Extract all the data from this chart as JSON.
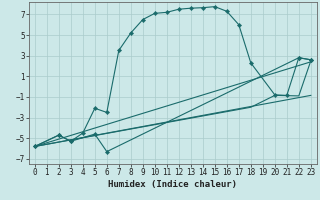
{
  "xlabel": "Humidex (Indice chaleur)",
  "background_color": "#cce8e8",
  "grid_color": "#aacccc",
  "line_color": "#1a6b6b",
  "xlim": [
    -0.5,
    23.5
  ],
  "ylim": [
    -7.5,
    8.2
  ],
  "yticks": [
    -7,
    -5,
    -3,
    -1,
    1,
    3,
    5,
    7
  ],
  "xticks": [
    0,
    1,
    2,
    3,
    4,
    5,
    6,
    7,
    8,
    9,
    10,
    11,
    12,
    13,
    14,
    15,
    16,
    17,
    18,
    19,
    20,
    21,
    22,
    23
  ],
  "line1_x": [
    0,
    2,
    3,
    4,
    5,
    6,
    7,
    8,
    9,
    10,
    11,
    12,
    13,
    14,
    15,
    16,
    17,
    18,
    20,
    21,
    22,
    23
  ],
  "line1_y": [
    -5.8,
    -4.7,
    -5.3,
    -4.5,
    -2.1,
    -2.5,
    3.5,
    5.2,
    6.5,
    7.1,
    7.2,
    7.5,
    7.6,
    7.65,
    7.75,
    7.3,
    6.0,
    2.3,
    -0.8,
    -0.85,
    2.8,
    2.6
  ],
  "line2_x": [
    0,
    2,
    3,
    5,
    6,
    22,
    23
  ],
  "line2_y": [
    -5.8,
    -4.7,
    -5.3,
    -4.6,
    -6.3,
    2.8,
    2.6
  ],
  "line3_x": [
    0,
    23
  ],
  "line3_y": [
    -5.8,
    -0.85
  ],
  "line4_x": [
    0,
    18,
    20,
    22,
    23
  ],
  "line4_y": [
    -5.8,
    -2.0,
    -0.85,
    -0.9,
    2.5
  ],
  "line5_x": [
    0,
    23
  ],
  "line5_y": [
    -5.8,
    2.4
  ]
}
